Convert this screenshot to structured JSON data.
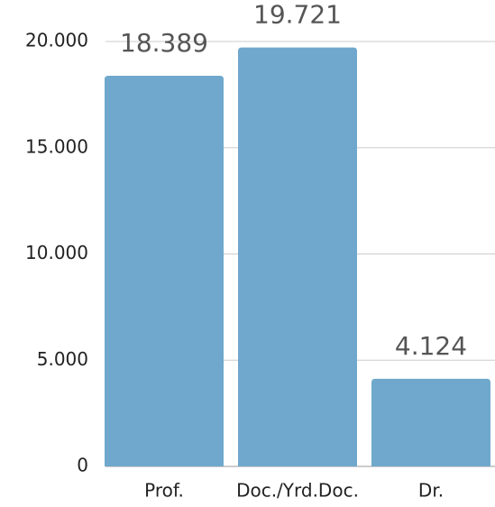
{
  "chart_data": {
    "type": "bar",
    "categories": [
      "Prof.",
      "Doc./Yrd.Doc.",
      "Dr."
    ],
    "values": [
      18389,
      19721,
      4124
    ],
    "value_labels": [
      "18.389",
      "19.721",
      "4.124"
    ],
    "color": "#6fa8cc",
    "ylim": [
      0,
      20000
    ],
    "yticks": [
      0,
      {
        "value": 5000,
        "label": "5.000"
      },
      {
        "value": 10000,
        "label": "10.000"
      },
      {
        "value": 15000,
        "label": "15.000"
      },
      {
        "value": 20000,
        "label": "20.000"
      }
    ],
    "grid": true
  }
}
